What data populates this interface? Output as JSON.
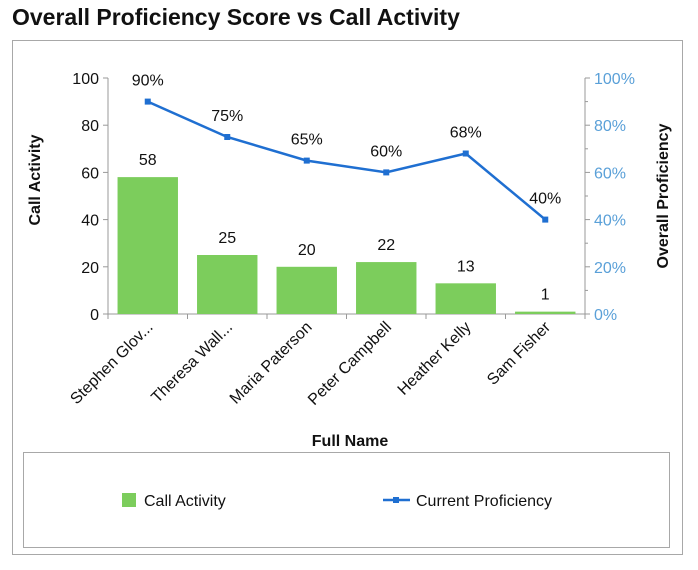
{
  "chart_data": {
    "type": "bar+line",
    "title": "Overall Proficiency Score vs Call Activity",
    "xlabel": "Full Name",
    "ylabel_left": "Call Activity",
    "ylabel_right": "Overall Proficiency",
    "categories": [
      "Stephen Glov...",
      "Theresa Wall...",
      "Maria Paterson",
      "Peter Campbell",
      "Heather Kelly",
      "Sam Fisher"
    ],
    "ylim_left": [
      0,
      100
    ],
    "ylim_right": [
      0,
      100
    ],
    "left_ticks": [
      "0",
      "20",
      "40",
      "60",
      "80",
      "100"
    ],
    "right_ticks": [
      "0%",
      "20%",
      "40%",
      "60%",
      "80%",
      "100%"
    ],
    "series": [
      {
        "name": "Call Activity",
        "kind": "bar",
        "axis": "left",
        "color": "#7ccd5c",
        "values": [
          58,
          25,
          20,
          22,
          13,
          1
        ],
        "labels": [
          "58",
          "25",
          "20",
          "22",
          "13",
          "1"
        ]
      },
      {
        "name": "Current Proficiency",
        "kind": "line",
        "axis": "right",
        "color": "#1f6fd1",
        "values": [
          90,
          75,
          65,
          60,
          68,
          40
        ],
        "labels": [
          "90%",
          "75%",
          "65%",
          "60%",
          "68%",
          "40%"
        ]
      }
    ],
    "grid": false,
    "legend_position": "bottom",
    "colors": {
      "right_axis": "#5aa0d8",
      "axis_line": "#999999"
    }
  }
}
